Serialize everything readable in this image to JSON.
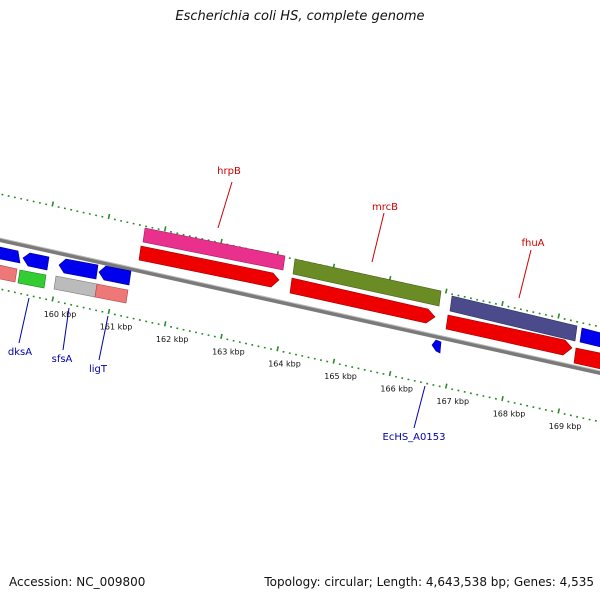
{
  "title": "Escherichia coli HS, complete genome",
  "footer": {
    "accession": "Accession: NC_009800",
    "summary": "Topology: circular; Length: 4,643,538 bp; Genes: 4,535"
  },
  "axis_ticks": [
    {
      "label": "160 kbp",
      "kbp": 160
    },
    {
      "label": "161 kbp",
      "kbp": 161
    },
    {
      "label": "162 kbp",
      "kbp": 162
    },
    {
      "label": "163 kbp",
      "kbp": 163
    },
    {
      "label": "164 kbp",
      "kbp": 164
    },
    {
      "label": "165 kbp",
      "kbp": 165
    },
    {
      "label": "166 kbp",
      "kbp": 166
    },
    {
      "label": "167 kbp",
      "kbp": 167
    },
    {
      "label": "168 kbp",
      "kbp": 168
    },
    {
      "label": "169 kbp",
      "kbp": 169
    }
  ],
  "gene_labels": [
    {
      "name": "hrpB",
      "color": "#cc0000"
    },
    {
      "name": "mrcB",
      "color": "#cc0000"
    },
    {
      "name": "fhuA",
      "color": "#cc0000"
    },
    {
      "name": "dksA",
      "color": "#0000aa"
    },
    {
      "name": "sfsA",
      "color": "#0000aa"
    },
    {
      "name": "ligT",
      "color": "#0000aa"
    },
    {
      "name": "EcHS_A0153",
      "color": "#0000aa"
    }
  ],
  "colors": {
    "backbone": "#888888",
    "gc_ticks": "#2a8a2a",
    "cds_forward": "#ee0000",
    "cds_reverse": "#0000ee",
    "hrpB_class": "#e8308c",
    "mrcB_class": "#6b8c25",
    "fhuA_class": "#4b4b8c",
    "dksA_class": "#33cc33",
    "sfsA_class": "#bbbbbb",
    "ligT_class": "#ee7777"
  }
}
